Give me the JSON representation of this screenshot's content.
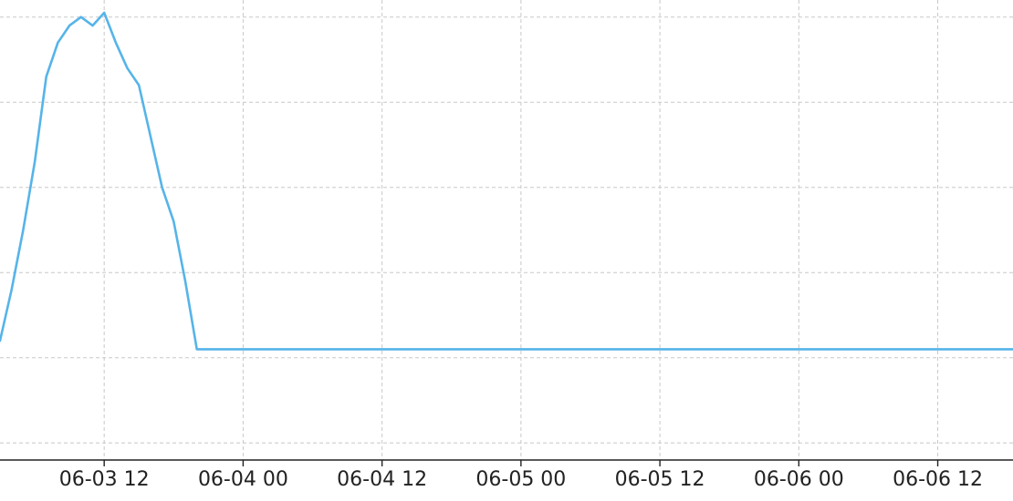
{
  "chart_data": {
    "type": "line",
    "title": "",
    "xlabel": "",
    "ylabel": "",
    "x_axis": {
      "type": "datetime",
      "range": [
        "2006-06-03T03:00",
        "2006-06-06T18:30"
      ],
      "ticks": [
        {
          "value": "2006-06-03T12:00",
          "label": "06-03 12"
        },
        {
          "value": "2006-06-04T00:00",
          "label": "06-04 00"
        },
        {
          "value": "2006-06-04T12:00",
          "label": "06-04 12"
        },
        {
          "value": "2006-06-05T00:00",
          "label": "06-05 00"
        },
        {
          "value": "2006-06-05T12:00",
          "label": "06-05 12"
        },
        {
          "value": "2006-06-06T00:00",
          "label": "06-06 00"
        },
        {
          "value": "2006-06-06T12:00",
          "label": "06-06 12"
        }
      ]
    },
    "y_axis": {
      "range": [
        -1.2,
        4.2
      ],
      "tick_labels_visible": false,
      "gridlines": [
        -1,
        0,
        1,
        2,
        3,
        4
      ]
    },
    "grid": true,
    "legend": "none",
    "series": [
      {
        "color": "#56b4e9",
        "x": [
          "2006-06-03T03:00",
          "2006-06-03T04:00",
          "2006-06-03T05:00",
          "2006-06-03T06:00",
          "2006-06-03T07:00",
          "2006-06-03T08:00",
          "2006-06-03T09:00",
          "2006-06-03T10:00",
          "2006-06-03T11:00",
          "2006-06-03T12:00",
          "2006-06-03T13:00",
          "2006-06-03T14:00",
          "2006-06-03T15:00",
          "2006-06-03T16:00",
          "2006-06-03T17:00",
          "2006-06-03T18:00",
          "2006-06-03T19:00",
          "2006-06-03T20:00",
          "2006-06-03T21:00",
          "2006-06-03T22:00",
          "2006-06-03T23:00",
          "2006-06-04T00:00",
          "2006-06-04T01:00",
          "2006-06-04T02:00",
          "2006-06-04T03:00",
          "2006-06-04T04:00",
          "2006-06-04T05:00",
          "2006-06-04T06:00",
          "2006-06-04T07:00",
          "2006-06-04T08:00",
          "2006-06-04T09:00",
          "2006-06-04T10:00",
          "2006-06-04T11:00",
          "2006-06-04T12:00",
          "2006-06-04T13:00",
          "2006-06-04T14:00",
          "2006-06-04T15:00",
          "2006-06-04T16:00",
          "2006-06-04T17:00",
          "2006-06-04T18:00",
          "2006-06-04T19:00",
          "2006-06-04T20:00",
          "2006-06-04T21:00",
          "2006-06-04T22:00",
          "2006-06-04T23:00",
          "2006-06-05T00:00",
          "2006-06-05T01:00",
          "2006-06-05T02:00",
          "2006-06-05T03:00",
          "2006-06-05T04:00",
          "2006-06-05T05:00",
          "2006-06-05T06:00",
          "2006-06-05T07:00",
          "2006-06-05T08:00",
          "2006-06-05T09:00",
          "2006-06-05T10:00",
          "2006-06-05T11:00",
          "2006-06-05T12:00",
          "2006-06-05T13:00",
          "2006-06-05T14:00",
          "2006-06-05T15:00",
          "2006-06-05T16:00",
          "2006-06-05T17:00",
          "2006-06-05T18:00",
          "2006-06-05T19:00",
          "2006-06-05T20:00",
          "2006-06-05T21:00",
          "2006-06-05T22:00",
          "2006-06-05T23:00",
          "2006-06-06T00:00",
          "2006-06-06T01:00",
          "2006-06-06T02:00",
          "2006-06-06T03:00",
          "2006-06-06T04:00",
          "2006-06-06T05:00",
          "2006-06-06T06:00",
          "2006-06-06T07:00",
          "2006-06-06T08:00",
          "2006-06-06T09:00",
          "2006-06-06T10:00",
          "2006-06-06T11:00",
          "2006-06-06T12:00",
          "2006-06-06T13:00",
          "2006-06-06T14:00",
          "2006-06-06T15:00",
          "2006-06-06T16:00",
          "2006-06-06T17:00",
          "2006-06-06T18:00",
          "2006-06-06T18:30"
        ],
        "values": [
          0.2,
          0.8,
          1.5,
          2.3,
          3.3,
          3.7,
          3.9,
          4.0,
          3.9,
          4.05,
          3.7,
          3.4,
          3.2,
          2.6,
          2.0,
          1.6,
          0.9,
          0.1,
          0.1,
          0.1,
          0.1,
          0.1,
          0.1,
          0.1,
          0.1,
          0.1,
          0.1,
          0.1,
          0.1,
          0.1,
          0.1,
          0.1,
          0.1,
          0.1,
          0.1,
          0.1,
          0.1,
          0.1,
          0.1,
          0.1,
          0.1,
          0.1,
          0.1,
          0.1,
          0.1,
          0.1,
          0.1,
          0.1,
          0.1,
          0.1,
          0.1,
          0.1,
          0.1,
          0.1,
          0.1,
          0.1,
          0.1,
          0.1,
          0.1,
          0.1,
          0.1,
          0.1,
          0.1,
          0.1,
          0.1,
          0.1,
          0.1,
          0.1,
          0.1,
          0.1,
          0.1,
          0.1,
          0.1,
          0.1,
          0.1,
          0.1,
          0.1,
          0.1,
          0.1,
          0.1,
          0.1,
          0.1,
          0.1,
          0.1,
          0.1,
          0.1,
          0.1,
          0.1,
          0.1
        ]
      }
    ]
  }
}
